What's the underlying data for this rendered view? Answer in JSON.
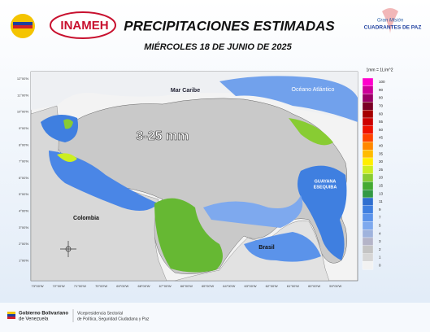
{
  "header": {
    "logo_text": "INAMEH",
    "title": "PRECIPITACIONES ESTIMADAS",
    "date": "MIÉRCOLES 18 DE JUNIO DE 2025",
    "right_logo_top": "Gran Misión",
    "right_logo_bottom": "CUADRANTES DE PAZ"
  },
  "map": {
    "range_label": "3-25 mm",
    "places": {
      "caribe": "Mar Caribe",
      "atlantico": "Océano Atlántico",
      "colombia": "Colombia",
      "brasil": "Brasil",
      "guayana_1": "GUAYANA",
      "guayana_2": "ESEQUIBA"
    },
    "lat_labels": [
      "12°00'N",
      "11°00'N",
      "10°00'N",
      "9°00'N",
      "8°00'N",
      "7°00'N",
      "6°00'N",
      "5°00'N",
      "4°00'N",
      "3°00'N",
      "2°00'N",
      "1°00'N"
    ],
    "lon_labels": [
      "73°00'W",
      "72°00'W",
      "71°00'W",
      "70°00'W",
      "69°00'W",
      "68°00'W",
      "67°00'W",
      "66°00'W",
      "65°00'W",
      "64°00'W",
      "63°00'W",
      "62°00'W",
      "61°00'W",
      "60°00'W",
      "59°00'W"
    ]
  },
  "legend": {
    "title": "1mm = 1L/m^2",
    "items": [
      {
        "label": "100",
        "color": "#ff00cc"
      },
      {
        "label": "90",
        "color": "#cc0099"
      },
      {
        "label": "80",
        "color": "#990066"
      },
      {
        "label": "70",
        "color": "#7a0026"
      },
      {
        "label": "60",
        "color": "#a50000"
      },
      {
        "label": "55",
        "color": "#cc0000"
      },
      {
        "label": "50",
        "color": "#ee1100"
      },
      {
        "label": "45",
        "color": "#ff4400"
      },
      {
        "label": "40",
        "color": "#ff8800"
      },
      {
        "label": "35",
        "color": "#ffbb00"
      },
      {
        "label": "30",
        "color": "#ffee00"
      },
      {
        "label": "25",
        "color": "#ccee22"
      },
      {
        "label": "20",
        "color": "#88cc33"
      },
      {
        "label": "15",
        "color": "#44aa33"
      },
      {
        "label": "13",
        "color": "#339944"
      },
      {
        "label": "11",
        "color": "#2f6ecf"
      },
      {
        "label": "9",
        "color": "#3f7fe0"
      },
      {
        "label": "7",
        "color": "#5b93ea"
      },
      {
        "label": "5",
        "color": "#7ea9ee"
      },
      {
        "label": "4",
        "color": "#9fb3dd"
      },
      {
        "label": "3",
        "color": "#b4b4c8"
      },
      {
        "label": "2",
        "color": "#c4c4c4"
      },
      {
        "label": "1",
        "color": "#d6d6d6"
      },
      {
        "label": "0",
        "color": "#f2f2f2"
      }
    ]
  },
  "footer": {
    "gov_1": "Gobierno Bolivariano",
    "gov_2": "de Venezuela",
    "vice_1": "Vicepresidencia Sectorial",
    "vice_2": "de Política, Seguridad Ciudadana y Paz"
  }
}
